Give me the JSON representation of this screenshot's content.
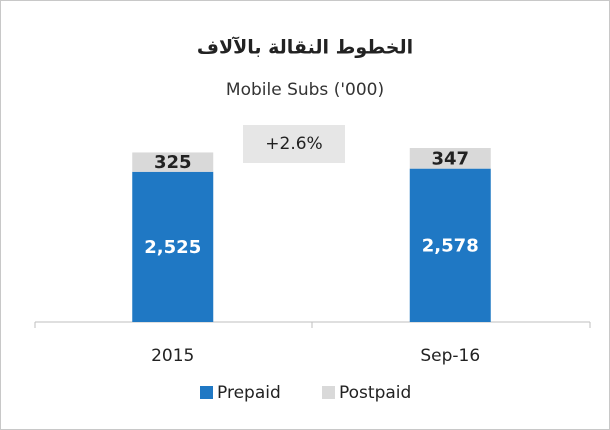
{
  "chart_data": {
    "type": "bar",
    "stacked": true,
    "title": "الخطوط النقالة بالآلاف",
    "subtitle": "Mobile Subs ('000)",
    "annotation": "+2.6%",
    "categories": [
      "2015",
      "Sep-16"
    ],
    "series": [
      {
        "name": "Prepaid",
        "color": "#1f78c4",
        "values": [
          2525,
          2578
        ],
        "value_labels": [
          "2,525",
          "2,578"
        ]
      },
      {
        "name": "Postpaid",
        "color": "#d9d9d9",
        "values": [
          325,
          347
        ]
      }
    ],
    "legend": "bottom"
  }
}
